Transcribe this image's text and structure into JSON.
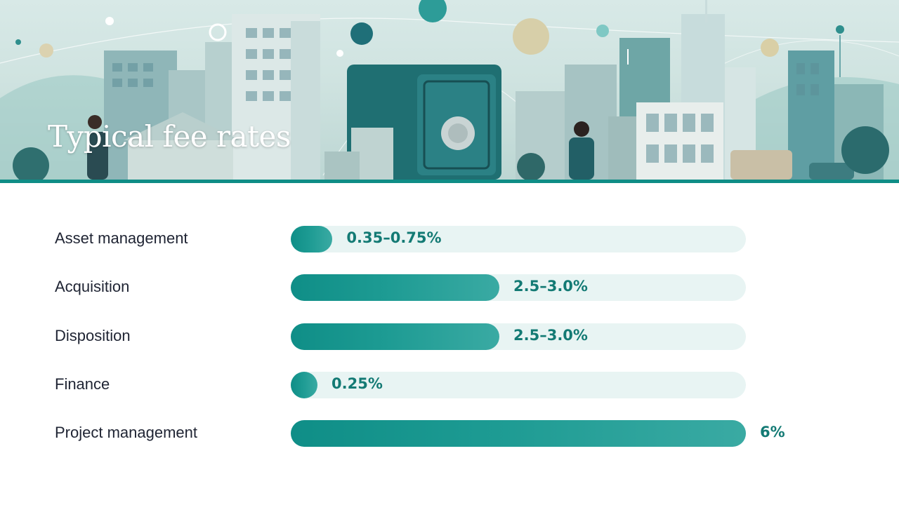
{
  "title": "Typical fee rates",
  "colors": {
    "accent": "#0f8d86",
    "track": "#e8f4f3",
    "label_text": "#1f2433",
    "value_text": "#137a74"
  },
  "chart_data": {
    "type": "bar",
    "orientation": "horizontal",
    "title": "",
    "xlabel": "",
    "ylabel": "",
    "xlim": [
      0,
      6
    ],
    "grid": false,
    "legend": "none",
    "categories": [
      "Asset management",
      "Acquisition",
      "Disposition",
      "Finance",
      "Project management"
    ],
    "value_labels": [
      "0.35–0.75%",
      "2.5–3.0%",
      "2.5–3.0%",
      "0.25%",
      "6%"
    ],
    "values": [
      0.55,
      2.75,
      2.75,
      0.25,
      6
    ],
    "series": [
      {
        "values": [
          0.55,
          2.75,
          2.75,
          0.25,
          6
        ]
      }
    ]
  }
}
